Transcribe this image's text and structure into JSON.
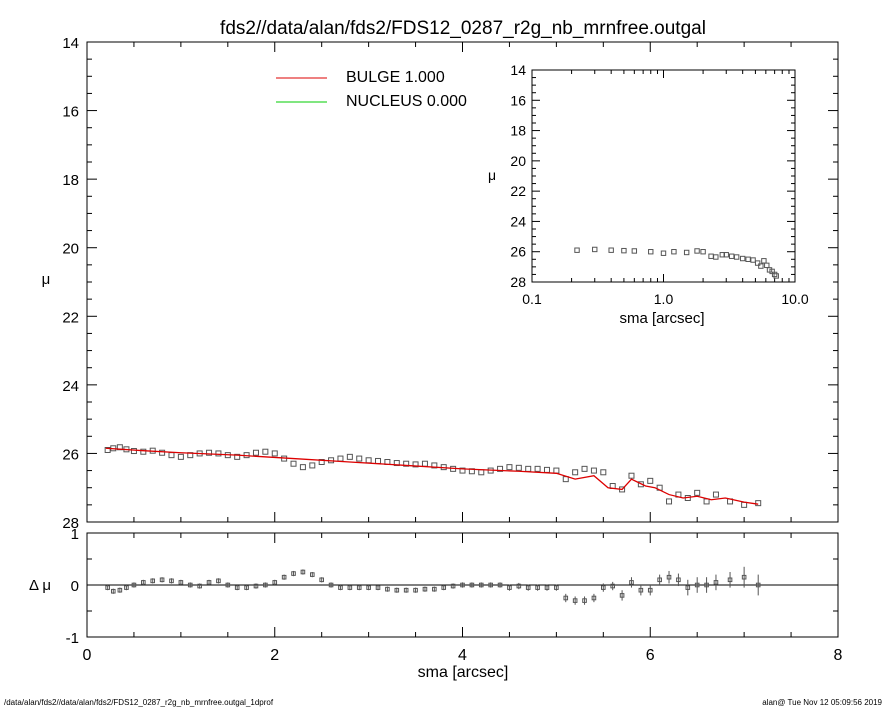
{
  "title": "fds2//data/alan/fds2/FDS12_0287_r2g_nb_mrnfree.outgal",
  "footer_left": "/data/alan/fds2//data/alan/fds2/FDS12_0287_r2g_nb_mrnfree.outgal_1dprof",
  "footer_right": "alan@  Tue Nov 12 05:09:56 2019",
  "colors": {
    "data": "#555555",
    "bulge": "#dd0000",
    "nucleus": "#00cc00",
    "axes": "#000000"
  },
  "chart_data": [
    {
      "name": "main-profile",
      "type": "scatter",
      "xlabel": "",
      "ylabel": "μ",
      "xlim": [
        0,
        8
      ],
      "ylim": [
        28,
        14
      ],
      "x_ticks": [
        0,
        2,
        4,
        6,
        8
      ],
      "y_ticks": [
        14,
        16,
        18,
        20,
        22,
        24,
        26,
        28
      ],
      "legend": {
        "placement": "top-center",
        "entries": [
          {
            "label": "BULGE  1.000",
            "color": "#dd0000"
          },
          {
            "label": "NUCLEUS  0.000",
            "color": "#00cc00"
          }
        ]
      },
      "series": [
        {
          "role": "data",
          "x": [
            0.22,
            0.28,
            0.35,
            0.42,
            0.5,
            0.6,
            0.7,
            0.8,
            0.9,
            1.0,
            1.1,
            1.2,
            1.3,
            1.4,
            1.5,
            1.6,
            1.7,
            1.8,
            1.9,
            2.0,
            2.1,
            2.2,
            2.3,
            2.4,
            2.5,
            2.6,
            2.7,
            2.8,
            2.9,
            3.0,
            3.1,
            3.2,
            3.3,
            3.4,
            3.5,
            3.6,
            3.7,
            3.8,
            3.9,
            4.0,
            4.1,
            4.2,
            4.3,
            4.4,
            4.5,
            4.6,
            4.7,
            4.8,
            4.9,
            5.0,
            5.1,
            5.2,
            5.3,
            5.4,
            5.5,
            5.6,
            5.7,
            5.8,
            5.9,
            6.0,
            6.1,
            6.2,
            6.3,
            6.4,
            6.5,
            6.6,
            6.7,
            6.85,
            7.0,
            7.15
          ],
          "y": [
            25.9,
            25.85,
            25.82,
            25.88,
            25.93,
            25.95,
            25.92,
            25.98,
            26.05,
            26.1,
            26.05,
            26.0,
            25.98,
            26.0,
            26.05,
            26.1,
            26.05,
            25.98,
            25.95,
            26.0,
            26.15,
            26.3,
            26.4,
            26.35,
            26.25,
            26.2,
            26.15,
            26.1,
            26.15,
            26.2,
            26.22,
            26.25,
            26.28,
            26.3,
            26.32,
            26.3,
            26.35,
            26.4,
            26.45,
            26.5,
            26.52,
            26.55,
            26.5,
            26.45,
            26.4,
            26.42,
            26.45,
            26.45,
            26.48,
            26.5,
            26.75,
            26.55,
            26.45,
            26.5,
            26.55,
            26.95,
            27.05,
            26.65,
            26.9,
            26.8,
            27.0,
            27.4,
            27.2,
            27.3,
            27.15,
            27.4,
            27.2,
            27.4,
            27.5,
            27.45
          ]
        },
        {
          "role": "bulge",
          "name": "BULGE",
          "x": [
            0.2,
            0.6,
            1.0,
            1.6,
            2.2,
            2.8,
            3.4,
            4.0,
            4.6,
            5.0,
            5.2,
            5.4,
            5.55,
            5.7,
            5.8,
            5.95,
            6.05,
            6.2,
            6.35,
            6.5,
            6.65,
            6.8,
            7.0,
            7.15
          ],
          "y": [
            25.85,
            25.92,
            25.98,
            26.05,
            26.15,
            26.25,
            26.35,
            26.45,
            26.52,
            26.58,
            26.75,
            26.65,
            27.0,
            27.05,
            26.75,
            26.95,
            27.0,
            27.2,
            27.3,
            27.25,
            27.35,
            27.3,
            27.42,
            27.48
          ]
        }
      ]
    },
    {
      "name": "residuals",
      "type": "scatter",
      "xlabel": "sma [arcsec]",
      "ylabel": "Δ μ",
      "xlim": [
        0,
        8
      ],
      "ylim": [
        -1,
        1
      ],
      "x_ticks": [
        0,
        2,
        4,
        6,
        8
      ],
      "y_ticks": [
        1,
        0,
        -1
      ],
      "reference_line": 0,
      "series": [
        {
          "role": "residual",
          "x": [
            0.22,
            0.28,
            0.35,
            0.42,
            0.5,
            0.6,
            0.7,
            0.8,
            0.9,
            1.0,
            1.1,
            1.2,
            1.3,
            1.4,
            1.5,
            1.6,
            1.7,
            1.8,
            1.9,
            2.0,
            2.1,
            2.2,
            2.3,
            2.4,
            2.5,
            2.6,
            2.7,
            2.8,
            2.9,
            3.0,
            3.1,
            3.2,
            3.3,
            3.4,
            3.5,
            3.6,
            3.7,
            3.8,
            3.9,
            4.0,
            4.1,
            4.2,
            4.3,
            4.4,
            4.5,
            4.6,
            4.7,
            4.8,
            4.9,
            5.0,
            5.1,
            5.2,
            5.3,
            5.4,
            5.5,
            5.6,
            5.7,
            5.8,
            5.9,
            6.0,
            6.1,
            6.2,
            6.3,
            6.4,
            6.5,
            6.6,
            6.7,
            6.85,
            7.0,
            7.15
          ],
          "y": [
            -0.05,
            -0.12,
            -0.1,
            -0.05,
            0.0,
            0.05,
            0.08,
            0.1,
            0.08,
            0.05,
            0.0,
            -0.02,
            0.05,
            0.08,
            0.0,
            -0.05,
            -0.05,
            -0.02,
            0.0,
            0.05,
            0.15,
            0.22,
            0.25,
            0.2,
            0.1,
            0.0,
            -0.05,
            -0.05,
            -0.05,
            -0.05,
            -0.05,
            -0.08,
            -0.1,
            -0.1,
            -0.1,
            -0.08,
            -0.08,
            -0.05,
            -0.02,
            0.0,
            0.0,
            0.0,
            0.0,
            0.0,
            -0.05,
            -0.02,
            -0.05,
            -0.05,
            -0.05,
            -0.05,
            -0.25,
            -0.3,
            -0.3,
            -0.25,
            -0.05,
            -0.02,
            -0.2,
            0.05,
            -0.1,
            -0.1,
            0.1,
            0.15,
            0.1,
            -0.05,
            0.0,
            0.0,
            0.05,
            0.1,
            0.15,
            0.0
          ],
          "err": [
            0.05,
            0.05,
            0.05,
            0.05,
            0.05,
            0.05,
            0.05,
            0.05,
            0.05,
            0.05,
            0.05,
            0.05,
            0.05,
            0.05,
            0.05,
            0.05,
            0.05,
            0.05,
            0.05,
            0.05,
            0.05,
            0.05,
            0.05,
            0.05,
            0.05,
            0.05,
            0.05,
            0.05,
            0.05,
            0.05,
            0.05,
            0.05,
            0.05,
            0.05,
            0.05,
            0.05,
            0.05,
            0.05,
            0.05,
            0.05,
            0.05,
            0.05,
            0.05,
            0.05,
            0.06,
            0.06,
            0.06,
            0.06,
            0.06,
            0.06,
            0.08,
            0.08,
            0.08,
            0.08,
            0.08,
            0.08,
            0.1,
            0.1,
            0.1,
            0.1,
            0.1,
            0.12,
            0.12,
            0.15,
            0.15,
            0.15,
            0.15,
            0.15,
            0.2,
            0.2
          ]
        }
      ]
    },
    {
      "name": "inset-log-profile",
      "type": "scatter",
      "xlabel": "sma [arcsec]",
      "ylabel": "μ",
      "x_scale": "log",
      "xlim": [
        0.1,
        10
      ],
      "ylim": [
        28,
        14
      ],
      "x_ticks": [
        0.1,
        1.0,
        10.0
      ],
      "x_tick_labels": [
        "0.1",
        "1.0",
        "10.0"
      ],
      "y_ticks": [
        14,
        16,
        18,
        20,
        22,
        24,
        26,
        28
      ],
      "series": [
        {
          "role": "data",
          "x": [
            0.22,
            0.3,
            0.4,
            0.5,
            0.6,
            0.8,
            1.0,
            1.2,
            1.5,
            1.8,
            2.0,
            2.3,
            2.5,
            2.8,
            3.0,
            3.3,
            3.6,
            4.0,
            4.4,
            4.8,
            5.2,
            5.5,
            5.8,
            6.1,
            6.4,
            6.7,
            7.0,
            7.2
          ],
          "y": [
            25.9,
            25.85,
            25.9,
            25.93,
            25.95,
            26.0,
            26.1,
            26.0,
            26.05,
            25.95,
            26.0,
            26.3,
            26.35,
            26.2,
            26.2,
            26.3,
            26.35,
            26.45,
            26.5,
            26.55,
            26.75,
            26.95,
            26.6,
            26.9,
            27.2,
            27.3,
            27.5,
            27.6
          ]
        }
      ]
    }
  ]
}
